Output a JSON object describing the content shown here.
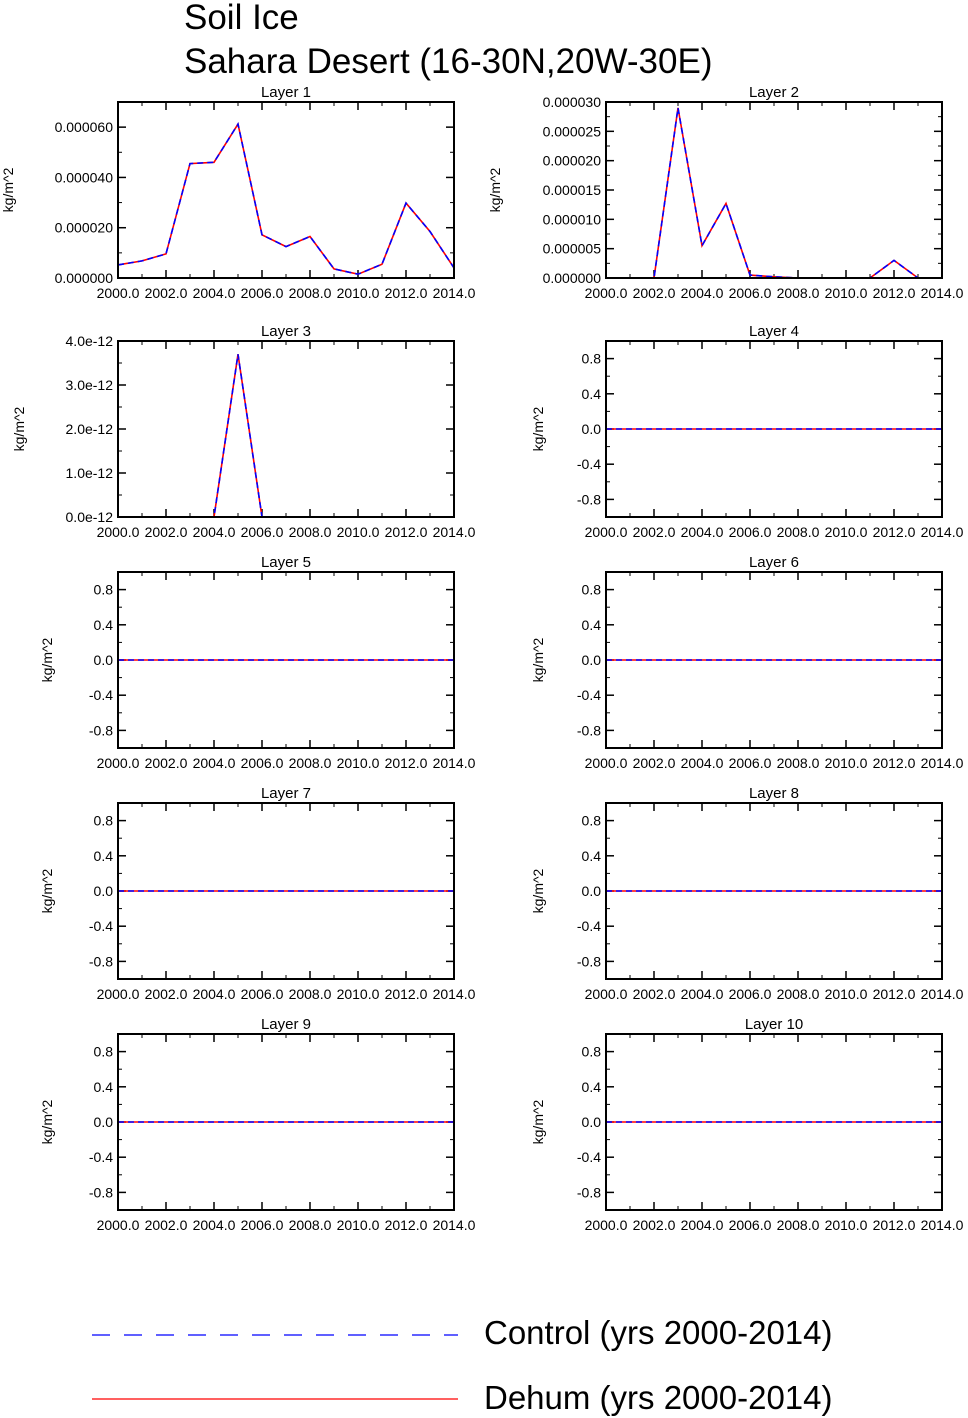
{
  "title": {
    "line1": "Soil Ice",
    "line2": "Sahara Desert (16-30N,20W-30E)"
  },
  "colors": {
    "control": "#0000ff",
    "dehum": "#ff0000",
    "axis": "#000000"
  },
  "legend": [
    {
      "label": "Control (yrs 2000-2014)",
      "style": "dashed",
      "color": "#0000ff"
    },
    {
      "label": "Dehum (yrs 2000-2014)",
      "style": "solid",
      "color": "#ff0000"
    }
  ],
  "chart_data": [
    {
      "type": "line",
      "title": "Layer 1",
      "ylabel": "kg/m^2",
      "xlim": [
        2000,
        2014
      ],
      "ylim": [
        0,
        7e-05
      ],
      "xticks": [
        "2000.0",
        "2002.0",
        "2004.0",
        "2006.0",
        "2008.0",
        "2010.0",
        "2012.0",
        "2014.0"
      ],
      "yticks": [
        0,
        2e-05,
        4e-05,
        6e-05
      ],
      "yticklabels": [
        "0.000000",
        "0.000020",
        "0.000040",
        "0.000060"
      ],
      "x": [
        2000,
        2001,
        2002,
        2003,
        2004,
        2005,
        2006,
        2007,
        2008,
        2009,
        2010,
        2011,
        2012,
        2013,
        2014
      ],
      "series": [
        {
          "name": "Control (yrs 2000-2014)",
          "values": [
            5.2e-06,
            6.8e-06,
            9.6e-06,
            4.55e-05,
            4.6e-05,
            6.12e-05,
            1.72e-05,
            1.25e-05,
            1.65e-05,
            3.6e-06,
            1.5e-06,
            5.5e-06,
            2.98e-05,
            1.85e-05,
            4e-06
          ]
        },
        {
          "name": "Dehum (yrs 2000-2014)",
          "values": [
            5.2e-06,
            6.8e-06,
            9.6e-06,
            4.55e-05,
            4.6e-05,
            6.12e-05,
            1.72e-05,
            1.25e-05,
            1.65e-05,
            3.6e-06,
            1.5e-06,
            5.5e-06,
            2.98e-05,
            1.85e-05,
            4e-06
          ]
        }
      ]
    },
    {
      "type": "line",
      "title": "Layer 2",
      "ylabel": "kg/m^2",
      "xlim": [
        2000,
        2014
      ],
      "ylim": [
        0,
        3e-05
      ],
      "xticks": [
        "2000.0",
        "2002.0",
        "2004.0",
        "2006.0",
        "2008.0",
        "2010.0",
        "2012.0",
        "2014.0"
      ],
      "yticks": [
        0,
        5e-06,
        1e-05,
        1.5e-05,
        2e-05,
        2.5e-05,
        3e-05
      ],
      "yticklabels": [
        "0.000000",
        "0.000005",
        "0.000010",
        "0.000015",
        "0.000020",
        "0.000025",
        "0.000030"
      ],
      "x": [
        2000,
        2001,
        2002,
        2003,
        2004,
        2005,
        2006,
        2007,
        2008,
        2009,
        2010,
        2011,
        2012,
        2013,
        2014
      ],
      "series": [
        {
          "name": "Control (yrs 2000-2014)",
          "values": [
            0,
            0,
            0,
            2.9e-05,
            5.5e-06,
            1.27e-05,
            5e-07,
            2e-07,
            0,
            0,
            0,
            0,
            3e-06,
            0,
            0
          ]
        },
        {
          "name": "Dehum (yrs 2000-2014)",
          "values": [
            0,
            0,
            0,
            2.9e-05,
            5.5e-06,
            1.27e-05,
            5e-07,
            2e-07,
            0,
            0,
            0,
            0,
            3e-06,
            0,
            0
          ]
        }
      ]
    },
    {
      "type": "line",
      "title": "Layer 3",
      "ylabel": "kg/m^2",
      "xlim": [
        2000,
        2014
      ],
      "ylim": [
        0,
        4e-12
      ],
      "xticks": [
        "2000.0",
        "2002.0",
        "2004.0",
        "2006.0",
        "2008.0",
        "2010.0",
        "2012.0",
        "2014.0"
      ],
      "yticks": [
        0,
        1e-12,
        2e-12,
        3e-12,
        4e-12
      ],
      "yticklabels": [
        "0.0e-12",
        "1.0e-12",
        "2.0e-12",
        "3.0e-12",
        "4.0e-12"
      ],
      "x": [
        2000,
        2001,
        2002,
        2003,
        2004,
        2005,
        2006,
        2007,
        2008,
        2009,
        2010,
        2011,
        2012,
        2013,
        2014
      ],
      "series": [
        {
          "name": "Control (yrs 2000-2014)",
          "values": [
            0,
            0,
            0,
            0,
            0,
            3.7e-12,
            0,
            0,
            0,
            0,
            0,
            0,
            0,
            0,
            0
          ]
        },
        {
          "name": "Dehum (yrs 2000-2014)",
          "values": [
            0,
            0,
            0,
            0,
            0,
            3.7e-12,
            0,
            0,
            0,
            0,
            0,
            0,
            0,
            0,
            0
          ]
        }
      ]
    },
    {
      "type": "line",
      "title": "Layer 4",
      "ylabel": "kg/m^2",
      "xlim": [
        2000,
        2014
      ],
      "ylim": [
        -1,
        1
      ],
      "xticks": [
        "2000.0",
        "2002.0",
        "2004.0",
        "2006.0",
        "2008.0",
        "2010.0",
        "2012.0",
        "2014.0"
      ],
      "yticks": [
        -0.8,
        -0.4,
        0,
        0.4,
        0.8
      ],
      "yticklabels": [
        "-0.8",
        "-0.4",
        "0.0",
        "0.4",
        "0.8"
      ],
      "x": [
        2000,
        2014
      ],
      "series": [
        {
          "name": "Control (yrs 2000-2014)",
          "values": [
            0,
            0
          ]
        },
        {
          "name": "Dehum (yrs 2000-2014)",
          "values": [
            0,
            0
          ]
        }
      ]
    },
    {
      "type": "line",
      "title": "Layer 5",
      "ylabel": "kg/m^2",
      "xlim": [
        2000,
        2014
      ],
      "ylim": [
        -1,
        1
      ],
      "xticks": [
        "2000.0",
        "2002.0",
        "2004.0",
        "2006.0",
        "2008.0",
        "2010.0",
        "2012.0",
        "2014.0"
      ],
      "yticks": [
        -0.8,
        -0.4,
        0,
        0.4,
        0.8
      ],
      "yticklabels": [
        "-0.8",
        "-0.4",
        "0.0",
        "0.4",
        "0.8"
      ],
      "x": [
        2000,
        2014
      ],
      "series": [
        {
          "name": "Control (yrs 2000-2014)",
          "values": [
            0,
            0
          ]
        },
        {
          "name": "Dehum (yrs 2000-2014)",
          "values": [
            0,
            0
          ]
        }
      ]
    },
    {
      "type": "line",
      "title": "Layer 6",
      "ylabel": "kg/m^2",
      "xlim": [
        2000,
        2014
      ],
      "ylim": [
        -1,
        1
      ],
      "xticks": [
        "2000.0",
        "2002.0",
        "2004.0",
        "2006.0",
        "2008.0",
        "2010.0",
        "2012.0",
        "2014.0"
      ],
      "yticks": [
        -0.8,
        -0.4,
        0,
        0.4,
        0.8
      ],
      "yticklabels": [
        "-0.8",
        "-0.4",
        "0.0",
        "0.4",
        "0.8"
      ],
      "x": [
        2000,
        2014
      ],
      "series": [
        {
          "name": "Control (yrs 2000-2014)",
          "values": [
            0,
            0
          ]
        },
        {
          "name": "Dehum (yrs 2000-2014)",
          "values": [
            0,
            0
          ]
        }
      ]
    },
    {
      "type": "line",
      "title": "Layer 7",
      "ylabel": "kg/m^2",
      "xlim": [
        2000,
        2014
      ],
      "ylim": [
        -1,
        1
      ],
      "xticks": [
        "2000.0",
        "2002.0",
        "2004.0",
        "2006.0",
        "2008.0",
        "2010.0",
        "2012.0",
        "2014.0"
      ],
      "yticks": [
        -0.8,
        -0.4,
        0,
        0.4,
        0.8
      ],
      "yticklabels": [
        "-0.8",
        "-0.4",
        "0.0",
        "0.4",
        "0.8"
      ],
      "x": [
        2000,
        2014
      ],
      "series": [
        {
          "name": "Control (yrs 2000-2014)",
          "values": [
            0,
            0
          ]
        },
        {
          "name": "Dehum (yrs 2000-2014)",
          "values": [
            0,
            0
          ]
        }
      ]
    },
    {
      "type": "line",
      "title": "Layer 8",
      "ylabel": "kg/m^2",
      "xlim": [
        2000,
        2014
      ],
      "ylim": [
        -1,
        1
      ],
      "xticks": [
        "2000.0",
        "2002.0",
        "2004.0",
        "2006.0",
        "2008.0",
        "2010.0",
        "2012.0",
        "2014.0"
      ],
      "yticks": [
        -0.8,
        -0.4,
        0,
        0.4,
        0.8
      ],
      "yticklabels": [
        "-0.8",
        "-0.4",
        "0.0",
        "0.4",
        "0.8"
      ],
      "x": [
        2000,
        2014
      ],
      "series": [
        {
          "name": "Control (yrs 2000-2014)",
          "values": [
            0,
            0
          ]
        },
        {
          "name": "Dehum (yrs 2000-2014)",
          "values": [
            0,
            0
          ]
        }
      ]
    },
    {
      "type": "line",
      "title": "Layer 9",
      "ylabel": "kg/m^2",
      "xlim": [
        2000,
        2014
      ],
      "ylim": [
        -1,
        1
      ],
      "xticks": [
        "2000.0",
        "2002.0",
        "2004.0",
        "2006.0",
        "2008.0",
        "2010.0",
        "2012.0",
        "2014.0"
      ],
      "yticks": [
        -0.8,
        -0.4,
        0,
        0.4,
        0.8
      ],
      "yticklabels": [
        "-0.8",
        "-0.4",
        "0.0",
        "0.4",
        "0.8"
      ],
      "x": [
        2000,
        2014
      ],
      "series": [
        {
          "name": "Control (yrs 2000-2014)",
          "values": [
            0,
            0
          ]
        },
        {
          "name": "Dehum (yrs 2000-2014)",
          "values": [
            0,
            0
          ]
        }
      ]
    },
    {
      "type": "line",
      "title": "Layer 10",
      "ylabel": "kg/m^2",
      "xlim": [
        2000,
        2014
      ],
      "ylim": [
        -1,
        1
      ],
      "xticks": [
        "2000.0",
        "2002.0",
        "2004.0",
        "2006.0",
        "2008.0",
        "2010.0",
        "2012.0",
        "2014.0"
      ],
      "yticks": [
        -0.8,
        -0.4,
        0,
        0.4,
        0.8
      ],
      "yticklabels": [
        "-0.8",
        "-0.4",
        "0.0",
        "0.4",
        "0.8"
      ],
      "x": [
        2000,
        2014
      ],
      "series": [
        {
          "name": "Control (yrs 2000-2014)",
          "values": [
            0,
            0
          ]
        },
        {
          "name": "Dehum (yrs 2000-2014)",
          "values": [
            0,
            0
          ]
        }
      ]
    }
  ]
}
